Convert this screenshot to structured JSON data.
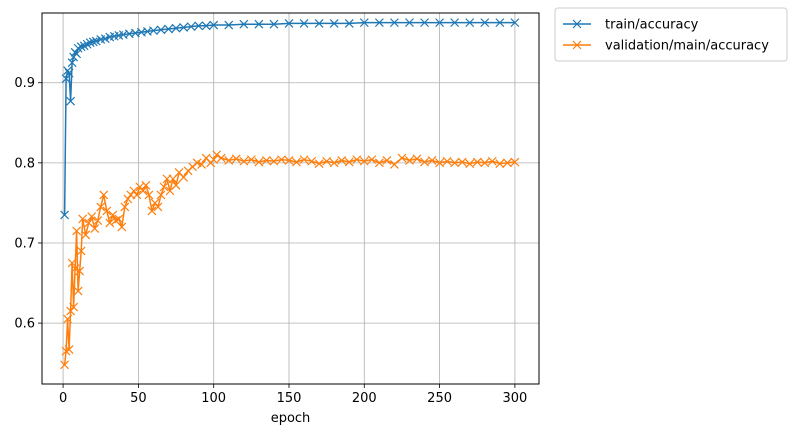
{
  "chart_data": {
    "type": "line",
    "title": "",
    "xlabel": "epoch",
    "ylabel": "",
    "xlim": [
      -14,
      316
    ],
    "ylim": [
      0.524,
      0.987
    ],
    "xticks": [
      0,
      50,
      100,
      150,
      200,
      250,
      300
    ],
    "yticks": [
      0.6,
      0.7,
      0.8,
      0.9
    ],
    "grid": true,
    "legend_position": "outside-top-right",
    "marker": "x",
    "series": [
      {
        "name": "train/accuracy",
        "color": "#1f77b4",
        "points": [
          [
            1,
            0.735
          ],
          [
            2,
            0.905
          ],
          [
            3,
            0.915
          ],
          [
            4,
            0.912
          ],
          [
            5,
            0.877
          ],
          [
            6,
            0.925
          ],
          [
            7,
            0.932
          ],
          [
            8,
            0.938
          ],
          [
            9,
            0.936
          ],
          [
            10,
            0.943
          ],
          [
            12,
            0.945
          ],
          [
            14,
            0.946
          ],
          [
            16,
            0.948
          ],
          [
            18,
            0.95
          ],
          [
            20,
            0.951
          ],
          [
            22,
            0.952
          ],
          [
            25,
            0.954
          ],
          [
            28,
            0.955
          ],
          [
            31,
            0.957
          ],
          [
            34,
            0.958
          ],
          [
            37,
            0.959
          ],
          [
            40,
            0.96
          ],
          [
            44,
            0.961
          ],
          [
            48,
            0.962
          ],
          [
            52,
            0.963
          ],
          [
            56,
            0.964
          ],
          [
            60,
            0.965
          ],
          [
            65,
            0.966
          ],
          [
            70,
            0.967
          ],
          [
            75,
            0.968
          ],
          [
            80,
            0.969
          ],
          [
            85,
            0.97
          ],
          [
            90,
            0.971
          ],
          [
            95,
            0.971
          ],
          [
            100,
            0.972
          ],
          [
            110,
            0.972
          ],
          [
            120,
            0.973
          ],
          [
            130,
            0.973
          ],
          [
            140,
            0.973
          ],
          [
            150,
            0.974
          ],
          [
            160,
            0.974
          ],
          [
            170,
            0.974
          ],
          [
            180,
            0.974
          ],
          [
            190,
            0.974
          ],
          [
            200,
            0.975
          ],
          [
            210,
            0.975
          ],
          [
            220,
            0.975
          ],
          [
            230,
            0.975
          ],
          [
            240,
            0.975
          ],
          [
            250,
            0.975
          ],
          [
            260,
            0.975
          ],
          [
            270,
            0.975
          ],
          [
            280,
            0.975
          ],
          [
            290,
            0.975
          ],
          [
            300,
            0.975
          ]
        ]
      },
      {
        "name": "validation/main/accuracy",
        "color": "#ff7f0e",
        "points": [
          [
            1,
            0.548
          ],
          [
            2,
            0.565
          ],
          [
            3,
            0.605
          ],
          [
            4,
            0.567
          ],
          [
            5,
            0.615
          ],
          [
            6,
            0.675
          ],
          [
            7,
            0.62
          ],
          [
            8,
            0.668
          ],
          [
            9,
            0.715
          ],
          [
            10,
            0.64
          ],
          [
            11,
            0.665
          ],
          [
            12,
            0.69
          ],
          [
            13,
            0.73
          ],
          [
            15,
            0.71
          ],
          [
            17,
            0.725
          ],
          [
            19,
            0.733
          ],
          [
            21,
            0.718
          ],
          [
            23,
            0.728
          ],
          [
            25,
            0.745
          ],
          [
            27,
            0.76
          ],
          [
            29,
            0.74
          ],
          [
            31,
            0.725
          ],
          [
            33,
            0.735
          ],
          [
            35,
            0.728
          ],
          [
            37,
            0.73
          ],
          [
            39,
            0.72
          ],
          [
            41,
            0.745
          ],
          [
            43,
            0.755
          ],
          [
            45,
            0.76
          ],
          [
            47,
            0.765
          ],
          [
            49,
            0.76
          ],
          [
            51,
            0.77
          ],
          [
            53,
            0.765
          ],
          [
            55,
            0.772
          ],
          [
            57,
            0.76
          ],
          [
            59,
            0.74
          ],
          [
            61,
            0.75
          ],
          [
            63,
            0.745
          ],
          [
            65,
            0.76
          ],
          [
            67,
            0.77
          ],
          [
            69,
            0.78
          ],
          [
            71,
            0.765
          ],
          [
            73,
            0.78
          ],
          [
            75,
            0.772
          ],
          [
            77,
            0.788
          ],
          [
            80,
            0.782
          ],
          [
            83,
            0.79
          ],
          [
            86,
            0.795
          ],
          [
            89,
            0.8
          ],
          [
            92,
            0.798
          ],
          [
            95,
            0.806
          ],
          [
            98,
            0.8
          ],
          [
            100,
            0.804
          ],
          [
            102,
            0.81
          ],
          [
            105,
            0.806
          ],
          [
            110,
            0.803
          ],
          [
            115,
            0.805
          ],
          [
            120,
            0.802
          ],
          [
            125,
            0.804
          ],
          [
            130,
            0.801
          ],
          [
            135,
            0.803
          ],
          [
            140,
            0.802
          ],
          [
            145,
            0.804
          ],
          [
            150,
            0.803
          ],
          [
            155,
            0.801
          ],
          [
            160,
            0.804
          ],
          [
            165,
            0.802
          ],
          [
            170,
            0.799
          ],
          [
            175,
            0.802
          ],
          [
            180,
            0.8
          ],
          [
            185,
            0.803
          ],
          [
            190,
            0.801
          ],
          [
            195,
            0.804
          ],
          [
            200,
            0.802
          ],
          [
            205,
            0.804
          ],
          [
            210,
            0.8
          ],
          [
            215,
            0.803
          ],
          [
            220,
            0.798
          ],
          [
            225,
            0.806
          ],
          [
            230,
            0.803
          ],
          [
            235,
            0.805
          ],
          [
            240,
            0.801
          ],
          [
            245,
            0.803
          ],
          [
            250,
            0.8
          ],
          [
            255,
            0.802
          ],
          [
            260,
            0.8
          ],
          [
            265,
            0.801
          ],
          [
            270,
            0.799
          ],
          [
            275,
            0.801
          ],
          [
            280,
            0.8
          ],
          [
            285,
            0.802
          ],
          [
            290,
            0.799
          ],
          [
            295,
            0.8
          ],
          [
            300,
            0.801
          ]
        ]
      }
    ]
  }
}
